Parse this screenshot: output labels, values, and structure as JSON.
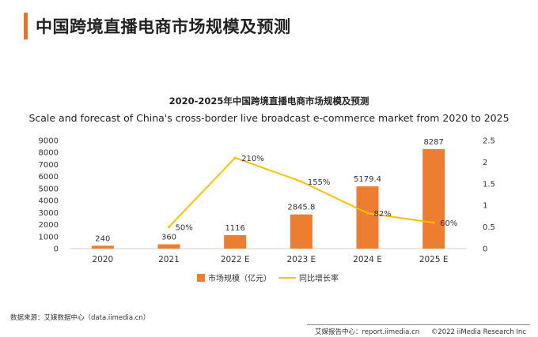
{
  "header": {
    "title": "中国跨境直播电商市场规模及预测",
    "accent_color": "#E8742C"
  },
  "chart_data": {
    "type": "bar",
    "title_zh": "2020-2025年中国跨境直播电商市场规模及预测",
    "title_en": "Scale and forecast of China's cross-border live broadcast e-commerce market from 2020 to 2025",
    "categories": [
      "2020",
      "2021",
      "2022 E",
      "2023 E",
      "2024 E",
      "2025 E"
    ],
    "series": [
      {
        "name": "市场规模（亿元）",
        "type": "bar",
        "axis": "left",
        "color": "#ED7D31",
        "values": [
          240,
          360,
          1116,
          2845.8,
          5179.4,
          8287
        ],
        "labels": [
          "240",
          "360",
          "1116",
          "2845.8",
          "5179.4",
          "8287"
        ]
      },
      {
        "name": "同比增长率",
        "type": "line",
        "axis": "right",
        "color": "#FFC000",
        "values": [
          null,
          0.5,
          2.1,
          1.55,
          0.82,
          0.6
        ],
        "labels": [
          "",
          "50%",
          "210%",
          "155%",
          "82%",
          "60%"
        ]
      }
    ],
    "y_left": {
      "min": 0,
      "max": 9000,
      "ticks": [
        "0",
        "1000",
        "2000",
        "3000",
        "4000",
        "5000",
        "6000",
        "7000",
        "8000",
        "9000"
      ]
    },
    "y_right": {
      "min": 0,
      "max": 2.5,
      "ticks": [
        "0",
        "0.5",
        "1",
        "1.5",
        "2",
        "2.5"
      ]
    },
    "legend_position": "bottom"
  },
  "source": "数据来源：艾媒数据中心（data.iimedia.cn）",
  "footer": {
    "report": "艾媒报告中心：report.iimedia.cn",
    "copyright": "©2022  iiMedia Research  Inc"
  }
}
